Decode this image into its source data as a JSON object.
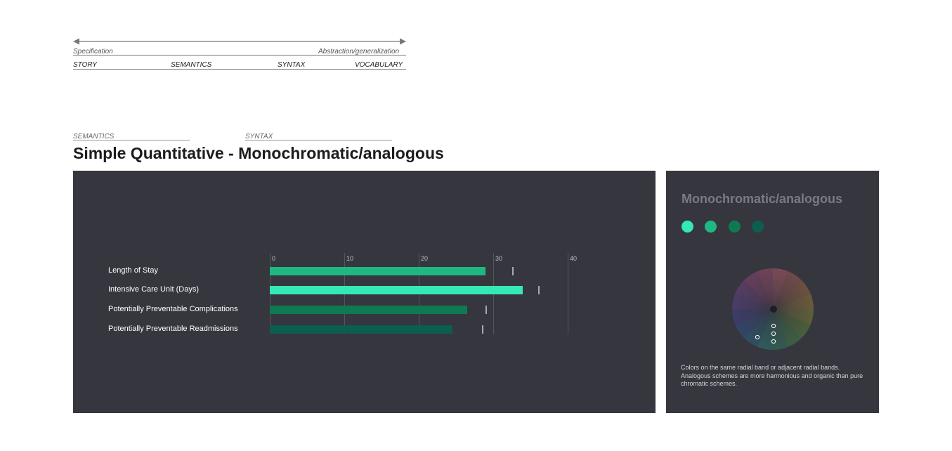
{
  "scale": {
    "left_label": "Specification",
    "right_label": "Abstraction/generalization",
    "stages": [
      "STORY",
      "SEMANTICS",
      "SYNTAX",
      "VOCABULARY"
    ]
  },
  "breadcrumbs": {
    "semantics": "SEMANTICS",
    "syntax": "SYNTAX"
  },
  "title": "Simple Quantitative - Monochromatic/analogous",
  "chart_data": {
    "type": "bar",
    "orientation": "horizontal",
    "categories": [
      "Length of Stay",
      "Intensive Care Unit (Days)",
      "Potentially Preventable Complications",
      "Potentially Preventable Readmissions"
    ],
    "values": [
      29,
      34,
      26.5,
      24.5
    ],
    "targets": [
      32.5,
      36,
      29,
      28.5
    ],
    "x_ticks": [
      "0",
      "10",
      "20",
      "30",
      "40"
    ],
    "xlim": [
      0,
      40
    ],
    "colors": [
      "#1fb882",
      "#35e9b4",
      "#0f7a51",
      "#0c5e4e"
    ],
    "grid": true
  },
  "side": {
    "title": "Monochromatic/analogous",
    "swatches": [
      "#35e9b4",
      "#1fb882",
      "#0f7a51",
      "#0c5e4e"
    ],
    "description": "Colors on the same radial band or adjacent radial bands. Analogous schemes are more harmonious and organic than pure chromatic schemes."
  }
}
